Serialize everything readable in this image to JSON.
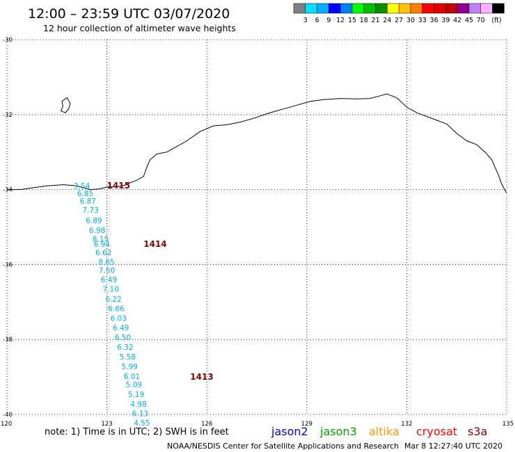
{
  "title": "12:00 – 23:59 UTC 03/07/2020",
  "subtitle": "12 hour collection of altimeter wave heights",
  "color_scale": {
    "colors": [
      "#808080",
      "#00e0ff",
      "#00b0ff",
      "#0000ff",
      "#0080ff",
      "#00ff00",
      "#00c000",
      "#009000",
      "#ffff00",
      "#ffc000",
      "#ff8000",
      "#ff0000",
      "#e00000",
      "#c00000",
      "#900090",
      "#c080ff",
      "#ffb0ff",
      "#000000"
    ],
    "labels": [
      "3",
      "6",
      "9",
      "12",
      "15",
      "18",
      "21",
      "24",
      "27",
      "30",
      "33",
      "36",
      "39",
      "42",
      "45",
      "70"
    ],
    "unit": "(ft)"
  },
  "map": {
    "lon_range": [
      120,
      135
    ],
    "lat_range": [
      -40,
      -30
    ],
    "lon_ticks": [
      {
        "lon": 120,
        "label": "120"
      },
      {
        "lon": 123,
        "label": "123"
      },
      {
        "lon": 126,
        "label": "126"
      },
      {
        "lon": 129,
        "label": "129"
      },
      {
        "lon": 132,
        "label": "132"
      },
      {
        "lon": 135,
        "label": "135"
      }
    ],
    "lat_ticks": [
      {
        "lat": -30,
        "label": "-30"
      },
      {
        "lat": -32,
        "label": "-32"
      },
      {
        "lat": -34,
        "label": "-34"
      },
      {
        "lat": -36,
        "label": "-36"
      },
      {
        "lat": -38,
        "label": "-38"
      },
      {
        "lat": -40,
        "label": "-40"
      }
    ],
    "grid": true,
    "coastline": [
      [
        120.0,
        -34.0
      ],
      [
        120.4,
        -34.0
      ],
      [
        120.8,
        -33.95
      ],
      [
        121.2,
        -33.9
      ],
      [
        121.7,
        -33.87
      ],
      [
        122.1,
        -33.9
      ],
      [
        122.3,
        -33.95
      ],
      [
        122.5,
        -34.0
      ],
      [
        122.8,
        -33.98
      ],
      [
        123.0,
        -33.93
      ],
      [
        123.3,
        -33.93
      ],
      [
        123.55,
        -33.88
      ],
      [
        123.7,
        -33.82
      ],
      [
        123.9,
        -33.75
      ],
      [
        124.1,
        -33.65
      ],
      [
        124.2,
        -33.4
      ],
      [
        124.3,
        -33.2
      ],
      [
        124.5,
        -33.05
      ],
      [
        124.8,
        -33.0
      ],
      [
        125.1,
        -32.85
      ],
      [
        125.4,
        -32.7
      ],
      [
        125.8,
        -32.45
      ],
      [
        126.2,
        -32.3
      ],
      [
        126.6,
        -32.27
      ],
      [
        127.0,
        -32.2
      ],
      [
        127.4,
        -32.1
      ],
      [
        127.9,
        -31.95
      ],
      [
        128.3,
        -31.85
      ],
      [
        128.7,
        -31.75
      ],
      [
        129.1,
        -31.65
      ],
      [
        129.5,
        -31.6
      ],
      [
        130.0,
        -31.57
      ],
      [
        130.5,
        -31.58
      ],
      [
        130.9,
        -31.57
      ],
      [
        131.2,
        -31.5
      ],
      [
        131.4,
        -31.45
      ],
      [
        131.7,
        -31.55
      ],
      [
        132.0,
        -31.8
      ],
      [
        132.3,
        -31.95
      ],
      [
        132.6,
        -32.05
      ],
      [
        132.9,
        -32.15
      ],
      [
        133.2,
        -32.25
      ],
      [
        133.5,
        -32.5
      ],
      [
        133.8,
        -32.7
      ],
      [
        134.1,
        -32.8
      ],
      [
        134.35,
        -33.0
      ],
      [
        134.55,
        -33.2
      ],
      [
        134.75,
        -33.6
      ],
      [
        134.85,
        -33.85
      ],
      [
        135.0,
        -34.1
      ]
    ],
    "island": [
      [
        121.65,
        -31.65
      ],
      [
        121.8,
        -31.55
      ],
      [
        121.9,
        -31.7
      ],
      [
        121.85,
        -31.85
      ],
      [
        121.75,
        -31.95
      ],
      [
        121.62,
        -31.9
      ],
      [
        121.68,
        -31.78
      ],
      [
        121.65,
        -31.65
      ]
    ]
  },
  "passes": [
    {
      "label": "1415",
      "lon": 123.0,
      "lat": -33.9,
      "color": "#800000"
    },
    {
      "label": "1414",
      "lon": 124.1,
      "lat": -35.45,
      "color": "#800000"
    },
    {
      "label": "1413",
      "lon": 125.5,
      "lat": -39.0,
      "color": "#800000"
    }
  ],
  "wave_heights": {
    "color": "#00aee8",
    "points": [
      {
        "lon": 122.25,
        "lat": -33.9,
        "label": "3.54"
      },
      {
        "lon": 122.35,
        "lat": -34.1,
        "label": "6.85"
      },
      {
        "lon": 122.43,
        "lat": -34.3,
        "label": "6.87"
      },
      {
        "lon": 122.51,
        "lat": -34.55,
        "label": "7.73"
      },
      {
        "lon": 122.61,
        "lat": -34.82,
        "label": "6.89"
      },
      {
        "lon": 122.71,
        "lat": -35.08,
        "label": "6.98"
      },
      {
        "lon": 122.81,
        "lat": -35.32,
        "label": "8.15"
      },
      {
        "lon": 122.85,
        "lat": -35.45,
        "label": "6.94"
      },
      {
        "lon": 122.9,
        "lat": -35.68,
        "label": "6.62"
      },
      {
        "lon": 122.99,
        "lat": -35.93,
        "label": "8.65"
      },
      {
        "lon": 123.0,
        "lat": -36.15,
        "label": "7.50"
      },
      {
        "lon": 123.06,
        "lat": -36.4,
        "label": "6.49"
      },
      {
        "lon": 123.12,
        "lat": -36.65,
        "label": "7.10"
      },
      {
        "lon": 123.2,
        "lat": -36.92,
        "label": "6.22"
      },
      {
        "lon": 123.28,
        "lat": -37.17,
        "label": "6.66"
      },
      {
        "lon": 123.35,
        "lat": -37.43,
        "label": "6.03"
      },
      {
        "lon": 123.42,
        "lat": -37.68,
        "label": "6.49"
      },
      {
        "lon": 123.48,
        "lat": -37.94,
        "label": "6.50"
      },
      {
        "lon": 123.55,
        "lat": -38.2,
        "label": "6.32"
      },
      {
        "lon": 123.62,
        "lat": -38.46,
        "label": "5.58"
      },
      {
        "lon": 123.68,
        "lat": -38.72,
        "label": "5.99"
      },
      {
        "lon": 123.75,
        "lat": -38.98,
        "label": "6.01"
      },
      {
        "lon": 123.81,
        "lat": -39.2,
        "label": "5.09"
      },
      {
        "lon": 123.88,
        "lat": -39.46,
        "label": "5.19"
      },
      {
        "lon": 123.95,
        "lat": -39.72,
        "label": "4.98"
      },
      {
        "lon": 124.0,
        "lat": -39.97,
        "label": "6.13"
      },
      {
        "lon": 124.05,
        "lat": -40.22,
        "label": "4.55"
      }
    ]
  },
  "note": "note:  1) Time is in UTC;  2) SWH is in feet",
  "satellites": [
    {
      "name": "jason2",
      "color": "#0000e0"
    },
    {
      "name": "jason3",
      "color": "#00a000"
    },
    {
      "name": "altika",
      "color": "#ff9900"
    },
    {
      "name": "cryosat",
      "color": "#ff0000"
    },
    {
      "name": "s3a",
      "color": "#800000"
    }
  ],
  "credit": "NOAA/NESDIS Center for Satellite Applications and Research",
  "timestamp": "Mar  8 12:27:40 UTC 2020"
}
